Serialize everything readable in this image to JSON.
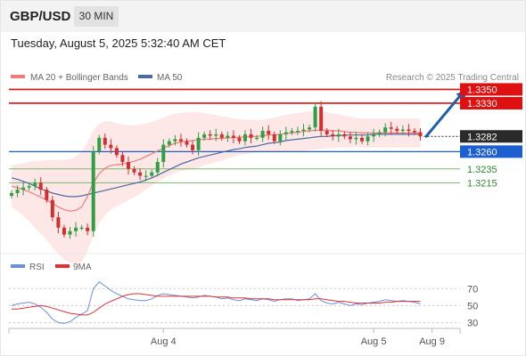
{
  "header": {
    "symbol": "GBP/USD",
    "timeframe": "30 MIN",
    "datetime": "Tuesday, August 5, 2025 5:32:40 AM CET"
  },
  "colors": {
    "candle_up": "#2ea043",
    "candle_down": "#d32f2f",
    "ma20": "#ef7b7b",
    "bollinger_fill": "#fde3e3",
    "ma50": "#4a6aa5",
    "resistance": "#e01010",
    "pivot": "#1b5fd1",
    "support": "#7cbb6a",
    "current": "#2a2a2a",
    "arrow": "#1f5fa8",
    "rsi": "#6b8ee0",
    "rsi_ma": "#e03030"
  },
  "chart_data": [
    {
      "type": "candlestick",
      "legend": [
        {
          "label": "MA 20 + Bollinger Bands",
          "color": "#ef7b7b"
        },
        {
          "label": "MA 50",
          "color": "#4a6aa5"
        }
      ],
      "credit": "Research © 2025 Trading Central",
      "x_tick_labels": [
        {
          "label": "Aug 4",
          "index": 26
        },
        {
          "label": "Aug 5",
          "index": 62
        },
        {
          "label": "Aug 9",
          "index": 72
        }
      ],
      "ylim": [
        1.3115,
        1.3357
      ],
      "levels": [
        {
          "label": "1.3350",
          "value": 1.335,
          "role": "resistance"
        },
        {
          "label": "1.3330",
          "value": 1.333,
          "role": "resistance"
        },
        {
          "label": "1.3282",
          "value": 1.3282,
          "role": "current"
        },
        {
          "label": "1.3260",
          "value": 1.326,
          "role": "pivot"
        },
        {
          "label": "1.3235",
          "value": 1.3235,
          "role": "support"
        },
        {
          "label": "1.3215",
          "value": 1.3215,
          "role": "support"
        }
      ],
      "arrow": {
        "from": {
          "index": 71,
          "value": 1.3282
        },
        "to": {
          "index": 78,
          "value": 1.335
        }
      },
      "closes": [
        1.32,
        1.3205,
        1.3208,
        1.321,
        1.3215,
        1.3205,
        1.319,
        1.3165,
        1.315,
        1.314,
        1.3145,
        1.315,
        1.315,
        1.3145,
        1.326,
        1.328,
        1.327,
        1.3265,
        1.3255,
        1.3245,
        1.3235,
        1.323,
        1.3225,
        1.3225,
        1.323,
        1.3245,
        1.327,
        1.3275,
        1.3278,
        1.3275,
        1.327,
        1.3262,
        1.328,
        1.3285,
        1.3283,
        1.3285,
        1.328,
        1.3283,
        1.328,
        1.3275,
        1.3285,
        1.328,
        1.328,
        1.329,
        1.3285,
        1.3275,
        1.3285,
        1.3288,
        1.329,
        1.329,
        1.3292,
        1.3295,
        1.3325,
        1.329,
        1.3285,
        1.3282,
        1.3285,
        1.3282,
        1.3278,
        1.328,
        1.3275,
        1.3282,
        1.3285,
        1.3288,
        1.3295,
        1.3293,
        1.329,
        1.3292,
        1.329,
        1.3288,
        1.3282
      ],
      "ma20": [
        1.321,
        1.3208,
        1.3205,
        1.3202,
        1.3198,
        1.3194,
        1.319,
        1.3185,
        1.318,
        1.3176,
        1.3174,
        1.3175,
        1.318,
        1.3195,
        1.3215,
        1.3228,
        1.3236,
        1.324,
        1.3241,
        1.3242,
        1.3244,
        1.3246,
        1.3249,
        1.3253,
        1.3257,
        1.3261,
        1.3265,
        1.3269,
        1.3272,
        1.3274,
        1.3275,
        1.3276,
        1.3277,
        1.3278,
        1.3278,
        1.3279,
        1.3279,
        1.328,
        1.328,
        1.3281,
        1.3281,
        1.3282,
        1.3282,
        1.3283,
        1.3284,
        1.3284,
        1.3285,
        1.3286,
        1.3287,
        1.3288,
        1.3289,
        1.329,
        1.3291,
        1.3291,
        1.3291,
        1.329,
        1.329,
        1.3289,
        1.3288,
        1.3288,
        1.3287,
        1.3287,
        1.3287,
        1.3287,
        1.3287,
        1.3287,
        1.3287,
        1.3287,
        1.3287,
        1.3287,
        1.3287
      ],
      "ma50": [
        1.3222,
        1.322,
        1.3217,
        1.3214,
        1.321,
        1.3206,
        1.3203,
        1.32,
        1.3198,
        1.3196,
        1.3195,
        1.3195,
        1.3196,
        1.3198,
        1.32,
        1.3202,
        1.3204,
        1.3206,
        1.3208,
        1.321,
        1.3212,
        1.3214,
        1.3216,
        1.3219,
        1.3222,
        1.3226,
        1.323,
        1.3234,
        1.3238,
        1.3242,
        1.3245,
        1.3248,
        1.3251,
        1.3253,
        1.3255,
        1.3257,
        1.3259,
        1.3261,
        1.3263,
        1.3264,
        1.3266,
        1.3267,
        1.3268,
        1.327,
        1.3272,
        1.3273,
        1.3274,
        1.3276,
        1.3277,
        1.3278,
        1.3279,
        1.328,
        1.3281,
        1.3282,
        1.3282,
        1.3283,
        1.3283,
        1.3284,
        1.3284,
        1.3284,
        1.3284,
        1.3284,
        1.3285,
        1.3285,
        1.3285,
        1.3285,
        1.3285,
        1.3285,
        1.3285,
        1.3285,
        1.3285
      ],
      "bb_width": [
        0.003,
        0.0034,
        0.0038,
        0.0043,
        0.0048,
        0.0053,
        0.0058,
        0.0063,
        0.0068,
        0.0072,
        0.0075,
        0.0078,
        0.008,
        0.0079,
        0.0076,
        0.0072,
        0.0068,
        0.0064,
        0.006,
        0.0057,
        0.0054,
        0.0052,
        0.005,
        0.0048,
        0.0046,
        0.0045,
        0.0044,
        0.0043,
        0.0043,
        0.0042,
        0.0042,
        0.0041,
        0.004,
        0.0038,
        0.0036,
        0.0034,
        0.0032,
        0.003,
        0.0028,
        0.0026,
        0.0025,
        0.0024,
        0.0023,
        0.0023,
        0.0024,
        0.0025,
        0.0026,
        0.0027,
        0.0028,
        0.0028,
        0.0028,
        0.0028,
        0.0028,
        0.0027,
        0.0026,
        0.0025,
        0.0024,
        0.0023,
        0.0022,
        0.0021,
        0.0021,
        0.0021,
        0.0021,
        0.0021,
        0.0021,
        0.0021,
        0.0021,
        0.0021,
        0.0021,
        0.0021,
        0.0021
      ]
    },
    {
      "type": "line",
      "legend": [
        {
          "label": "RSI",
          "color": "#6b8ee0"
        },
        {
          "label": "9MA",
          "color": "#e03030"
        }
      ],
      "yticks": [
        {
          "label": "70",
          "value": 70
        },
        {
          "label": "50",
          "value": 50
        },
        {
          "label": "30",
          "value": 30
        }
      ],
      "ylim": [
        20,
        85
      ],
      "rsi": [
        50,
        52,
        53,
        54,
        52,
        48,
        42,
        34,
        30,
        29,
        31,
        36,
        40,
        44,
        70,
        78,
        73,
        68,
        64,
        61,
        58,
        57,
        56,
        56,
        58,
        62,
        64,
        63,
        62,
        61,
        60,
        59,
        60,
        62,
        61,
        60,
        58,
        59,
        57,
        56,
        58,
        57,
        56,
        58,
        57,
        55,
        57,
        58,
        58,
        56,
        57,
        58,
        64,
        56,
        53,
        52,
        54,
        52,
        50,
        52,
        51,
        53,
        54,
        55,
        57,
        56,
        55,
        56,
        55,
        54,
        52
      ],
      "ma9": [
        46,
        46,
        47,
        48,
        49,
        50,
        49,
        47,
        45,
        43,
        41,
        40,
        39,
        39,
        42,
        47,
        52,
        55,
        58,
        61,
        63,
        64,
        64,
        63,
        62,
        61,
        61,
        61,
        61,
        61,
        61,
        61,
        61,
        61,
        61,
        60,
        60,
        60,
        59,
        59,
        59,
        58,
        58,
        58,
        58,
        57,
        57,
        57,
        57,
        57,
        57,
        57,
        58,
        58,
        57,
        56,
        55,
        55,
        54,
        53,
        53,
        53,
        53,
        53,
        54,
        54,
        55,
        55,
        55,
        55,
        55
      ]
    }
  ]
}
